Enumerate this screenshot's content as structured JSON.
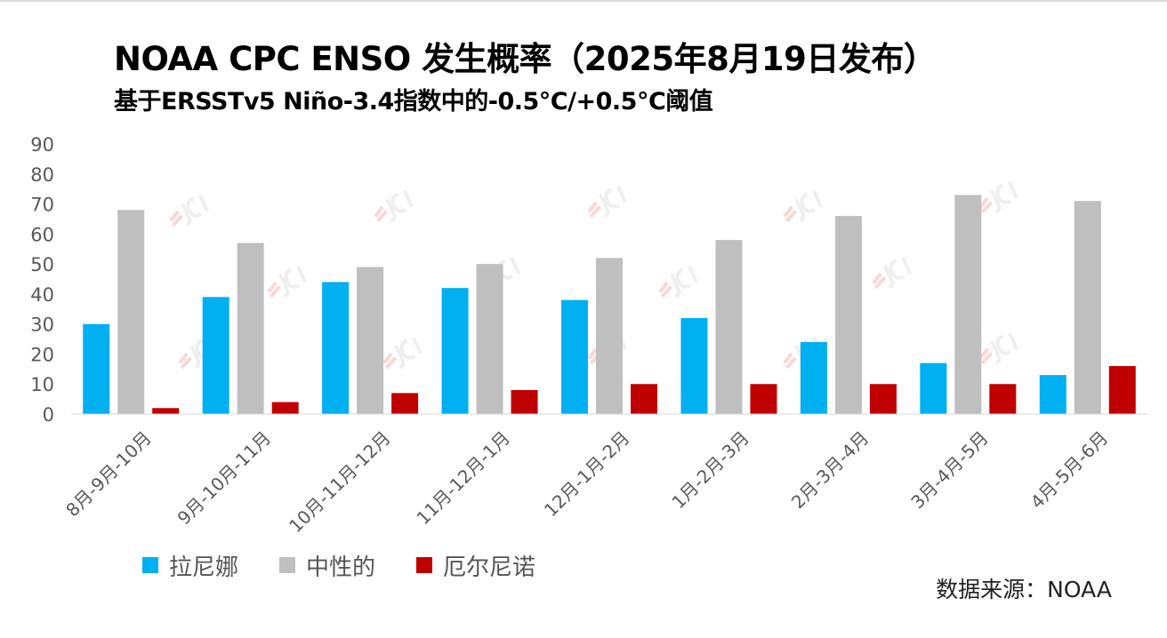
{
  "title": "NOAA CPC ENSO 发生概率（2025年8月19日发布）",
  "subtitle": "基于ERSSTv5 Niño-3.4指数中的-0.5°C/+0.5°C阈值",
  "source": "数据来源：NOAA",
  "colors": {
    "la_nina": "#00b0f0",
    "neutral": "#bfbfbf",
    "el_nino": "#c00000",
    "axis_text": "#595959",
    "watermark": "#e6e6e6"
  },
  "chart_data": {
    "type": "bar",
    "categories": [
      "8月-9月-10月",
      "9月-10月-11月",
      "10月-11月-12月",
      "11月-12月-1月",
      "12月-1月-2月",
      "1月-2月-3月",
      "2月-3月-4月",
      "3月-4月-5月",
      "4月-5月-6月"
    ],
    "series": [
      {
        "name": "拉尼娜",
        "color": "#00b0f0",
        "values": [
          30,
          39,
          44,
          42,
          38,
          32,
          24,
          17,
          13
        ]
      },
      {
        "name": "中性的",
        "color": "#bfbfbf",
        "values": [
          68,
          57,
          49,
          50,
          52,
          58,
          66,
          73,
          71
        ]
      },
      {
        "name": "厄尔尼诺",
        "color": "#c00000",
        "values": [
          2,
          4,
          7,
          8,
          10,
          10,
          10,
          10,
          16
        ]
      }
    ],
    "y_ticks": [
      "0",
      "10",
      "20",
      "30",
      "40",
      "50",
      "60",
      "70",
      "80",
      "90"
    ],
    "ylim": [
      0,
      90
    ],
    "grid": false,
    "legend": "bottom-left",
    "xlabel": "",
    "ylabel": ""
  }
}
